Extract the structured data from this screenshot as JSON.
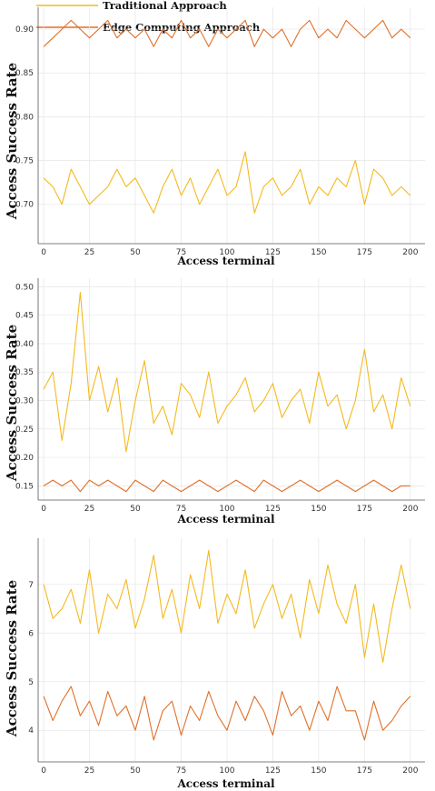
{
  "legend": [
    {
      "label": "Traditional Approach",
      "color": "#F4B91E"
    },
    {
      "label": "Edge Computing Approach",
      "color": "#E0702A"
    }
  ],
  "chart_data": [
    {
      "type": "line",
      "xlabel": "Access terminal",
      "ylabel": "Access Success Rate",
      "xlim": [
        -3,
        208
      ],
      "ylim": [
        0.655,
        0.925
      ],
      "xticks": [
        0,
        25,
        50,
        75,
        100,
        125,
        150,
        175,
        200
      ],
      "yticks": [
        "0.70",
        "0.75",
        "0.80",
        "0.85",
        "0.90"
      ],
      "grid": true,
      "series": [
        {
          "name": "Traditional Approach",
          "color": "#F4B91E",
          "x_start": 0,
          "x_step": 5,
          "values": [
            0.73,
            0.72,
            0.7,
            0.74,
            0.72,
            0.7,
            0.71,
            0.72,
            0.74,
            0.72,
            0.73,
            0.71,
            0.69,
            0.72,
            0.74,
            0.71,
            0.73,
            0.7,
            0.72,
            0.74,
            0.71,
            0.72,
            0.76,
            0.69,
            0.72,
            0.73,
            0.71,
            0.72,
            0.74,
            0.7,
            0.72,
            0.71,
            0.73,
            0.72,
            0.75,
            0.7,
            0.74,
            0.73,
            0.71,
            0.72,
            0.71
          ]
        },
        {
          "name": "Edge Computing Approach",
          "color": "#E0702A",
          "x_start": 0,
          "x_step": 5,
          "values": [
            0.88,
            0.89,
            0.9,
            0.91,
            0.9,
            0.89,
            0.9,
            0.91,
            0.89,
            0.9,
            0.89,
            0.9,
            0.88,
            0.9,
            0.89,
            0.91,
            0.89,
            0.9,
            0.88,
            0.9,
            0.89,
            0.9,
            0.91,
            0.88,
            0.9,
            0.89,
            0.9,
            0.88,
            0.9,
            0.91,
            0.89,
            0.9,
            0.89,
            0.91,
            0.9,
            0.89,
            0.9,
            0.91,
            0.89,
            0.9,
            0.89
          ]
        }
      ]
    },
    {
      "type": "line",
      "xlabel": "Access terminal",
      "ylabel": "Access Success Rate",
      "xlim": [
        -3,
        208
      ],
      "ylim": [
        0.125,
        0.515
      ],
      "xticks": [
        0,
        25,
        50,
        75,
        100,
        125,
        150,
        175,
        200
      ],
      "yticks": [
        "0.15",
        "0.20",
        "0.25",
        "0.30",
        "0.35",
        "0.40",
        "0.45",
        "0.50"
      ],
      "grid": true,
      "series": [
        {
          "name": "Traditional Approach",
          "color": "#F4B91E",
          "x_start": 0,
          "x_step": 5,
          "values": [
            0.32,
            0.35,
            0.23,
            0.33,
            0.49,
            0.3,
            0.36,
            0.28,
            0.34,
            0.21,
            0.3,
            0.37,
            0.26,
            0.29,
            0.24,
            0.33,
            0.31,
            0.27,
            0.35,
            0.26,
            0.29,
            0.31,
            0.34,
            0.28,
            0.3,
            0.33,
            0.27,
            0.3,
            0.32,
            0.26,
            0.35,
            0.29,
            0.31,
            0.25,
            0.3,
            0.39,
            0.28,
            0.31,
            0.25,
            0.34,
            0.29
          ]
        },
        {
          "name": "Edge Computing Approach",
          "color": "#E0702A",
          "x_start": 0,
          "x_step": 5,
          "values": [
            0.15,
            0.16,
            0.15,
            0.16,
            0.14,
            0.16,
            0.15,
            0.16,
            0.15,
            0.14,
            0.16,
            0.15,
            0.14,
            0.16,
            0.15,
            0.14,
            0.15,
            0.16,
            0.15,
            0.14,
            0.15,
            0.16,
            0.15,
            0.14,
            0.16,
            0.15,
            0.14,
            0.15,
            0.16,
            0.15,
            0.14,
            0.15,
            0.16,
            0.15,
            0.14,
            0.15,
            0.16,
            0.15,
            0.14,
            0.15,
            0.15
          ]
        }
      ]
    },
    {
      "type": "line",
      "xlabel": "Access terminal",
      "ylabel": "Access Success Rate",
      "xlim": [
        -3,
        208
      ],
      "ylim": [
        3.35,
        7.95
      ],
      "xticks": [
        0,
        25,
        50,
        75,
        100,
        125,
        150,
        175,
        200
      ],
      "yticks": [
        "4",
        "5",
        "6",
        "7"
      ],
      "grid": true,
      "series": [
        {
          "name": "Traditional Approach",
          "color": "#F4B91E",
          "x_start": 0,
          "x_step": 5,
          "values": [
            7.0,
            6.3,
            6.5,
            6.9,
            6.2,
            7.3,
            6.0,
            6.8,
            6.5,
            7.1,
            6.1,
            6.7,
            7.6,
            6.3,
            6.9,
            6.0,
            7.2,
            6.5,
            7.7,
            6.2,
            6.8,
            6.4,
            7.3,
            6.1,
            6.6,
            7.0,
            6.3,
            6.8,
            5.9,
            7.1,
            6.4,
            7.4,
            6.6,
            6.2,
            7.0,
            5.5,
            6.6,
            5.4,
            6.5,
            7.4,
            6.5
          ]
        },
        {
          "name": "Edge Computing Approach",
          "color": "#E0702A",
          "x_start": 0,
          "x_step": 5,
          "values": [
            4.7,
            4.2,
            4.6,
            4.9,
            4.3,
            4.6,
            4.1,
            4.8,
            4.3,
            4.5,
            4.0,
            4.7,
            3.8,
            4.4,
            4.6,
            3.9,
            4.5,
            4.2,
            4.8,
            4.3,
            4.0,
            4.6,
            4.2,
            4.7,
            4.4,
            3.9,
            4.8,
            4.3,
            4.5,
            4.0,
            4.6,
            4.2,
            4.9,
            4.4,
            4.4,
            3.8,
            4.6,
            4.0,
            4.2,
            4.5,
            4.7
          ]
        }
      ]
    }
  ]
}
